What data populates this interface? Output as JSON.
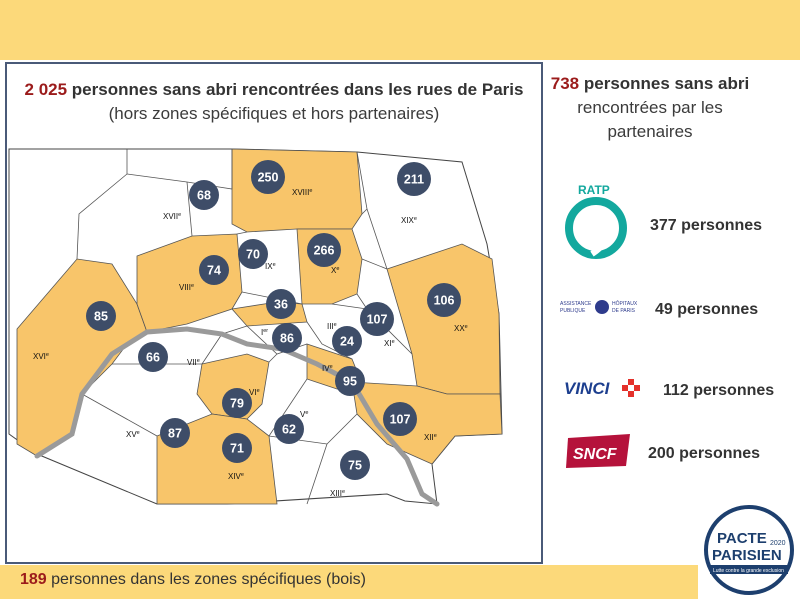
{
  "header": {
    "main_count": "2 025",
    "main_text": " personnes sans abri rencontrées dans les rues de Paris",
    "sub_text": "(hors zones spécifiques et hors partenaires)"
  },
  "partners_header": {
    "count": "738",
    "text_bold": " personnes sans abri",
    "line2": "rencontrées par les",
    "line3": "partenaires"
  },
  "partners": [
    {
      "name": "RATP",
      "value": "377 personnes",
      "color": "#13a89e"
    },
    {
      "name": "ASSISTANCE PUBLIQUE HÔPITAUX DE PARIS",
      "value": "49 personnes",
      "color": "#2e3b8c"
    },
    {
      "name": "VINCI",
      "value": "112 personnes",
      "color": "#1d3f8f"
    },
    {
      "name": "SNCF",
      "value": "200 personnes",
      "color": "#b5123b"
    }
  ],
  "footer": {
    "count": "189",
    "text": " personnes dans les zones spécifiques (bois)"
  },
  "logo": {
    "line1": "PACTE",
    "line2": "PARISIEN",
    "year": "2020",
    "tagline": "Lutte contre la grande exclusion"
  },
  "arrondissements": [
    {
      "label": "I",
      "sup": "er",
      "count": "86",
      "highlighted": false
    },
    {
      "label": "III",
      "sup": "e",
      "count": "24",
      "highlighted": false
    },
    {
      "label": "IV",
      "sup": "e",
      "count": "95",
      "highlighted": true
    },
    {
      "label": "V",
      "sup": "e",
      "count": "62",
      "highlighted": false
    },
    {
      "label": "VI",
      "sup": "e",
      "count": "79",
      "highlighted": true
    },
    {
      "label": "VII",
      "sup": "e",
      "count": "66",
      "highlighted": false
    },
    {
      "label": "VIII",
      "sup": "e",
      "count": "74",
      "highlighted": true
    },
    {
      "label": "IX",
      "sup": "e",
      "count": "70",
      "highlighted": false
    },
    {
      "label": "X",
      "sup": "e",
      "count": "266",
      "highlighted": true
    },
    {
      "label": "XI",
      "sup": "e",
      "count": "107",
      "highlighted": false
    },
    {
      "label": "XII",
      "sup": "e",
      "count": "107",
      "highlighted": true
    },
    {
      "label": "XIII",
      "sup": "e",
      "count": "75",
      "highlighted": false
    },
    {
      "label": "XIV",
      "sup": "e",
      "count": "71",
      "highlighted": true
    },
    {
      "label": "XV",
      "sup": "e",
      "count": "87",
      "highlighted": false
    },
    {
      "label": "XVI",
      "sup": "e",
      "count": "85",
      "highlighted": true
    },
    {
      "label": "XVII",
      "sup": "e",
      "count": "68",
      "highlighted": false
    },
    {
      "label": "XVIII",
      "sup": "e",
      "count": "250",
      "highlighted": true
    },
    {
      "label": "XIX",
      "sup": "e",
      "count": "211",
      "highlighted": false
    },
    {
      "label": "XX",
      "sup": "e",
      "count": "106",
      "highlighted": true
    },
    {
      "label": "II",
      "sup": "e",
      "count": "36",
      "highlighted": true
    }
  ],
  "colors": {
    "highlight": "#f8c56a",
    "plain": "#ffffff",
    "bubble": "#3e4d68",
    "accent_red": "#9b1b1b",
    "band": "#fcd97a"
  }
}
